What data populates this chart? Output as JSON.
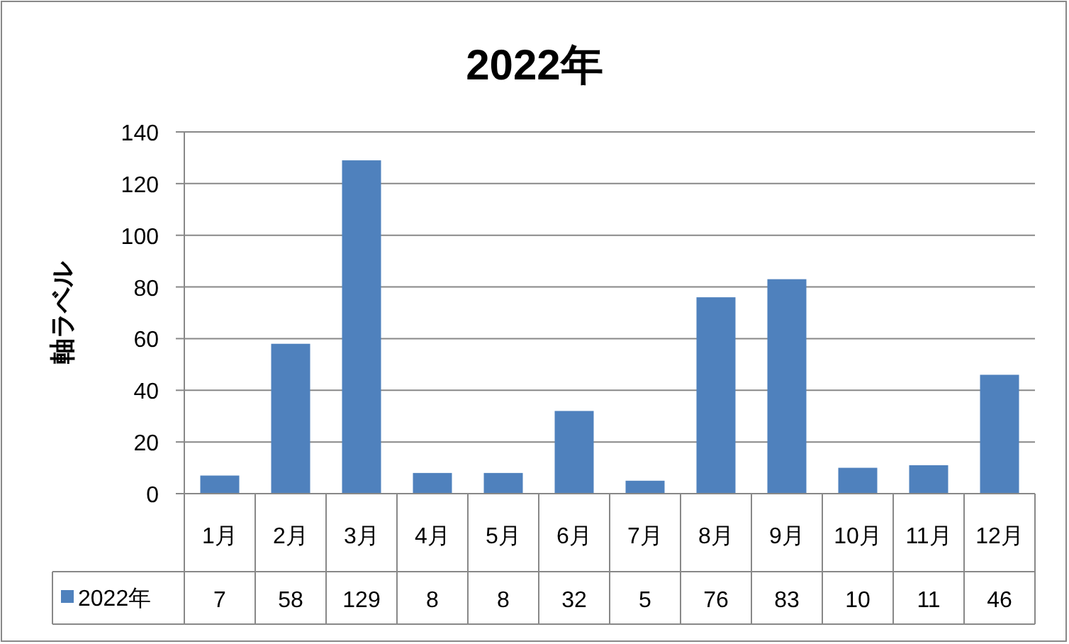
{
  "chart_data": {
    "type": "bar",
    "title": "2022年",
    "ylabel": "軸ラベル",
    "categories": [
      "1月",
      "2月",
      "3月",
      "4月",
      "5月",
      "6月",
      "7月",
      "8月",
      "9月",
      "10月",
      "11月",
      "12月"
    ],
    "series": [
      {
        "name": "2022年",
        "color": "#4f81bd",
        "values": [
          7,
          58,
          129,
          8,
          8,
          32,
          5,
          76,
          83,
          10,
          11,
          46
        ]
      }
    ],
    "ylim": [
      0,
      140
    ],
    "yticks": [
      0,
      20,
      40,
      60,
      80,
      100,
      120,
      140
    ],
    "grid": "y",
    "data_labels": true,
    "legend": "bottom"
  }
}
